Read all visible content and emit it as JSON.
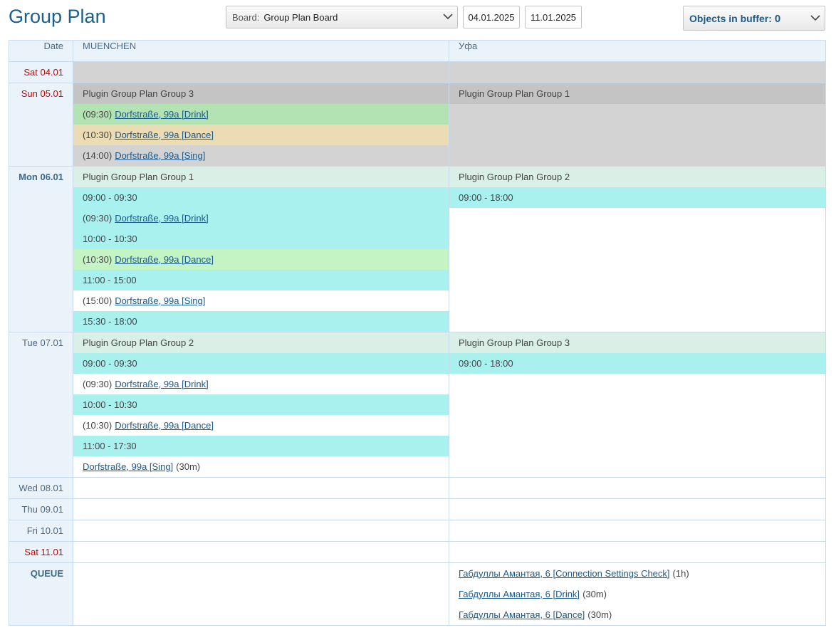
{
  "header": {
    "title": "Group Plan",
    "board_label": "Board:",
    "board_value": "Group Plan Board",
    "date_from": "04.01.2025",
    "date_to": "11.01.2025",
    "buffer_label": "Objects in buffer:",
    "buffer_count": 0
  },
  "table": {
    "columns": [
      "Date",
      "MUENCHEN",
      "Уфа"
    ],
    "rows": [
      {
        "date": "Sat 04.01",
        "date_style": "weekend",
        "cells": [
          {
            "bg": "#d3d3d3",
            "items": []
          },
          {
            "bg": "#d3d3d3",
            "items": []
          }
        ]
      },
      {
        "date": "Sun 05.01",
        "date_style": "weekend",
        "cells": [
          {
            "bg": "#d3d3d3",
            "items": [
              {
                "text": "Plugin Group Plan Group 3",
                "bg": "#c4c4c4"
              },
              {
                "time": "(09:30)",
                "link": "Dorfstraße, 99a [Drink]",
                "bg": "#b3e3b3"
              },
              {
                "time": "(10:30)",
                "link": "Dorfstraße, 99a [Dance]",
                "bg": "#ecdcb4"
              },
              {
                "time": "(14:00)",
                "link": "Dorfstraße, 99a [Sing]"
              }
            ]
          },
          {
            "bg": "#d3d3d3",
            "items": [
              {
                "text": "Plugin Group Plan Group 1",
                "bg": "#c4c4c4"
              }
            ]
          }
        ]
      },
      {
        "date": "Mon 06.01",
        "date_style": "today",
        "cells": [
          {
            "bg": "#ffffff",
            "items": [
              {
                "text": "Plugin Group Plan Group 1",
                "bg": "#daf0e6"
              },
              {
                "text": "09:00 - 09:30",
                "bg": "#a9f1ef"
              },
              {
                "time": "(09:30)",
                "link": "Dorfstraße, 99a [Drink]",
                "bg": "#a9f1ef"
              },
              {
                "text": "10:00 - 10:30",
                "bg": "#a9f1ef"
              },
              {
                "time": "(10:30)",
                "link": "Dorfstraße, 99a [Dance]",
                "bg": "#c4f4c4"
              },
              {
                "text": "11:00 - 15:00",
                "bg": "#a9f1ef"
              },
              {
                "time": "(15:00)",
                "link": "Dorfstraße, 99a [Sing]"
              },
              {
                "text": "15:30 - 18:00",
                "bg": "#a9f1ef"
              }
            ]
          },
          {
            "bg": "#ffffff",
            "items": [
              {
                "text": "Plugin Group Plan Group 2",
                "bg": "#daf0e6"
              },
              {
                "text": "09:00 - 18:00",
                "bg": "#a9f1ef"
              }
            ]
          }
        ]
      },
      {
        "date": "Tue 07.01",
        "date_style": "weekday",
        "cells": [
          {
            "bg": "#ffffff",
            "items": [
              {
                "text": "Plugin Group Plan Group 2",
                "bg": "#daf0e6"
              },
              {
                "text": "09:00 - 09:30",
                "bg": "#a9f1ef"
              },
              {
                "time": "(09:30)",
                "link": "Dorfstraße, 99a [Drink]"
              },
              {
                "text": "10:00 - 10:30",
                "bg": "#a9f1ef"
              },
              {
                "time": "(10:30)",
                "link": "Dorfstraße, 99a [Dance]"
              },
              {
                "text": "11:00 - 17:30",
                "bg": "#a9f1ef"
              },
              {
                "link": "Dorfstraße, 99a [Sing]",
                "after": "(30m)"
              }
            ]
          },
          {
            "bg": "#ffffff",
            "items": [
              {
                "text": "Plugin Group Plan Group 3",
                "bg": "#daf0e6"
              },
              {
                "text": "09:00 - 18:00",
                "bg": "#a9f1ef"
              }
            ]
          }
        ]
      },
      {
        "date": "Wed 08.01",
        "date_style": "weekday",
        "cells": [
          {
            "bg": "#ffffff",
            "items": []
          },
          {
            "bg": "#ffffff",
            "items": []
          }
        ]
      },
      {
        "date": "Thu 09.01",
        "date_style": "weekday",
        "cells": [
          {
            "bg": "#ffffff",
            "items": []
          },
          {
            "bg": "#ffffff",
            "items": []
          }
        ]
      },
      {
        "date": "Fri 10.01",
        "date_style": "weekday",
        "cells": [
          {
            "bg": "#ffffff",
            "items": []
          },
          {
            "bg": "#ffffff",
            "items": []
          }
        ]
      },
      {
        "date": "Sat 11.01",
        "date_style": "weekend",
        "cells": [
          {
            "bg": "#ffffff",
            "items": []
          },
          {
            "bg": "#ffffff",
            "items": []
          }
        ]
      },
      {
        "date": "QUEUE",
        "date_style": "queue",
        "cells": [
          {
            "bg": "#ffffff",
            "items": []
          },
          {
            "bg": "#ffffff",
            "items": [
              {
                "link": "Габдуллы Амантая, 6 [Connection Settings Check]",
                "after": "(1h)"
              },
              {
                "link": "Габдуллы Амантая, 6 [Drink]",
                "after": "(30m)"
              },
              {
                "link": "Габдуллы Амантая, 6 [Dance]",
                "after": "(30m)"
              }
            ]
          }
        ]
      }
    ]
  }
}
